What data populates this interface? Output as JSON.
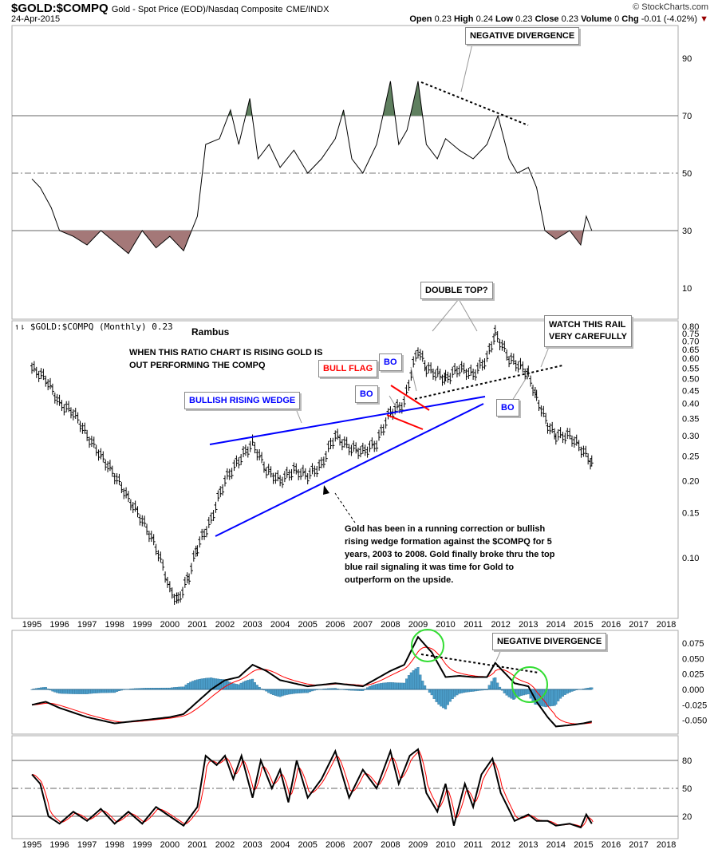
{
  "header": {
    "symbol": "$GOLD:$COMPQ",
    "description": "Gold - Spot Price (EOD)/Nasdaq Composite",
    "exchange": "CME/INDX",
    "date": "24-Apr-2015",
    "copyright": "© StockCharts.com",
    "open_label": "Open",
    "open": "0.23",
    "high_label": "High",
    "high": "0.24",
    "low_label": "Low",
    "low": "0.23",
    "close_label": "Close",
    "close": "0.23",
    "volume_label": "Volume",
    "volume": "0",
    "chg_label": "Chg",
    "chg": "-0.01 (-4.02%)"
  },
  "colors": {
    "price": "#000000",
    "wedge": "#0000ff",
    "flag": "#ff0000",
    "signal": "#ff0000",
    "histogram": "#4a9cc8",
    "circle": "#33dd33",
    "overbought_fill": "#5f7f5f",
    "oversold_fill": "#a47878"
  },
  "annotations": {
    "neg_div_top": "NEGATIVE DIVERGENCE",
    "double_top": "DOUBLE TOP?",
    "watch_rail_1": "WATCH THIS RAIL",
    "watch_rail_2": "VERY CAREFULLY",
    "legend": "$GOLD:$COMPQ (Monthly) 0.23",
    "author": "Rambus",
    "ratio_note_1": "WHEN THIS RATIO CHART IS RISING GOLD IS",
    "ratio_note_2": "OUT PERFORMING THE COMPQ",
    "bull_flag": "BULL FLAG",
    "bo": "BO",
    "wedge": "BULLISH RISING WEDGE",
    "gold_note": [
      "Gold has been in a running correction or bullish",
      "rising wedge formation against the $COMPQ for 5",
      "years, 2003 to 2008.  Gold finally broke thru the top",
      "blue rail signaling it was time for Gold to",
      "outperform on the upside."
    ],
    "neg_div_macd": "NEGATIVE DIVERGENCE"
  },
  "chart_data": [
    {
      "type": "line",
      "panel": "top-indicator",
      "yticks": [
        10,
        30,
        50,
        70,
        90
      ],
      "ylim": [
        0,
        105
      ],
      "points": [
        [
          1995,
          48
        ],
        [
          1995.3,
          45
        ],
        [
          1995.7,
          38
        ],
        [
          1996,
          30
        ],
        [
          1996.5,
          28
        ],
        [
          1997,
          25
        ],
        [
          1997.5,
          30
        ],
        [
          1998,
          26
        ],
        [
          1998.5,
          22
        ],
        [
          1999,
          30
        ],
        [
          1999.5,
          24
        ],
        [
          2000,
          28
        ],
        [
          2000.5,
          23
        ],
        [
          2001,
          35
        ],
        [
          2001.3,
          60
        ],
        [
          2001.8,
          62
        ],
        [
          2002.2,
          72
        ],
        [
          2002.5,
          60
        ],
        [
          2002.9,
          76
        ],
        [
          2003.2,
          55
        ],
        [
          2003.6,
          60
        ],
        [
          2004,
          52
        ],
        [
          2004.5,
          58
        ],
        [
          2005,
          50
        ],
        [
          2005.5,
          55
        ],
        [
          2006,
          62
        ],
        [
          2006.3,
          72
        ],
        [
          2006.6,
          55
        ],
        [
          2007,
          50
        ],
        [
          2007.5,
          60
        ],
        [
          2008,
          82
        ],
        [
          2008.3,
          60
        ],
        [
          2008.6,
          65
        ],
        [
          2009,
          82
        ],
        [
          2009.3,
          60
        ],
        [
          2009.7,
          55
        ],
        [
          2010,
          62
        ],
        [
          2010.5,
          58
        ],
        [
          2011,
          55
        ],
        [
          2011.5,
          60
        ],
        [
          2011.9,
          70
        ],
        [
          2012.3,
          55
        ],
        [
          2012.6,
          50
        ],
        [
          2013,
          52
        ],
        [
          2013.3,
          45
        ],
        [
          2013.6,
          30
        ],
        [
          2014,
          27
        ],
        [
          2014.5,
          30
        ],
        [
          2014.9,
          25
        ],
        [
          2015.1,
          35
        ],
        [
          2015.3,
          30
        ]
      ]
    },
    {
      "type": "ohlc",
      "panel": "price",
      "scale": "log",
      "yticks": [
        0.1,
        0.15,
        0.2,
        0.25,
        0.3,
        0.35,
        0.4,
        0.45,
        0.5,
        0.55,
        0.6,
        0.65,
        0.7,
        0.75,
        0.8
      ],
      "points": [
        [
          1995,
          0.55
        ],
        [
          1995.5,
          0.5
        ],
        [
          1996,
          0.4
        ],
        [
          1996.5,
          0.37
        ],
        [
          1997,
          0.3
        ],
        [
          1997.5,
          0.25
        ],
        [
          1998,
          0.21
        ],
        [
          1998.5,
          0.17
        ],
        [
          1999,
          0.14
        ],
        [
          1999.5,
          0.11
        ],
        [
          2000,
          0.075
        ],
        [
          2000.3,
          0.068
        ],
        [
          2000.7,
          0.085
        ],
        [
          2001,
          0.11
        ],
        [
          2001.5,
          0.14
        ],
        [
          2002,
          0.2
        ],
        [
          2002.5,
          0.24
        ],
        [
          2003,
          0.28
        ],
        [
          2003.5,
          0.22
        ],
        [
          2004,
          0.2
        ],
        [
          2004.5,
          0.22
        ],
        [
          2005,
          0.21
        ],
        [
          2005.5,
          0.23
        ],
        [
          2006,
          0.3
        ],
        [
          2006.5,
          0.27
        ],
        [
          2007,
          0.26
        ],
        [
          2007.5,
          0.28
        ],
        [
          2008,
          0.37
        ],
        [
          2008.5,
          0.4
        ],
        [
          2009,
          0.65
        ],
        [
          2009.3,
          0.55
        ],
        [
          2010,
          0.5
        ],
        [
          2010.5,
          0.55
        ],
        [
          2011,
          0.52
        ],
        [
          2011.5,
          0.6
        ],
        [
          2011.8,
          0.75
        ],
        [
          2012.3,
          0.6
        ],
        [
          2012.8,
          0.55
        ],
        [
          2013,
          0.52
        ],
        [
          2013.3,
          0.42
        ],
        [
          2013.7,
          0.33
        ],
        [
          2014,
          0.3
        ],
        [
          2014.5,
          0.3
        ],
        [
          2015,
          0.26
        ],
        [
          2015.3,
          0.235
        ]
      ]
    },
    {
      "type": "macd",
      "panel": "macd",
      "yticks": [
        -0.05,
        -0.025,
        0,
        0.025,
        0.05,
        0.075
      ],
      "macd": [
        [
          1995,
          -0.025
        ],
        [
          1995.5,
          -0.02
        ],
        [
          1996,
          -0.03
        ],
        [
          1997,
          -0.045
        ],
        [
          1998,
          -0.055
        ],
        [
          1999,
          -0.05
        ],
        [
          2000,
          -0.045
        ],
        [
          2000.5,
          -0.04
        ],
        [
          2001,
          -0.02
        ],
        [
          2001.5,
          0.0
        ],
        [
          2002,
          0.015
        ],
        [
          2002.5,
          0.02
        ],
        [
          2003,
          0.04
        ],
        [
          2003.5,
          0.03
        ],
        [
          2004,
          0.015
        ],
        [
          2005,
          0.005
        ],
        [
          2006,
          0.01
        ],
        [
          2007,
          0.005
        ],
        [
          2008,
          0.03
        ],
        [
          2008.5,
          0.04
        ],
        [
          2009,
          0.085
        ],
        [
          2009.5,
          0.06
        ],
        [
          2010,
          0.02
        ],
        [
          2010.5,
          0.022
        ],
        [
          2011,
          0.02
        ],
        [
          2011.5,
          0.02
        ],
        [
          2011.8,
          0.043
        ],
        [
          2012.5,
          0.01
        ],
        [
          2013,
          0.005
        ],
        [
          2013.3,
          -0.02
        ],
        [
          2013.7,
          -0.045
        ],
        [
          2014,
          -0.06
        ],
        [
          2014.5,
          -0.058
        ],
        [
          2015,
          -0.055
        ],
        [
          2015.3,
          -0.052
        ]
      ]
    },
    {
      "type": "line",
      "panel": "rsi",
      "yticks": [
        20,
        50,
        80
      ],
      "points": [
        [
          1995,
          65
        ],
        [
          1995.3,
          55
        ],
        [
          1995.6,
          20
        ],
        [
          1996,
          12
        ],
        [
          1996.5,
          25
        ],
        [
          1997,
          15
        ],
        [
          1997.5,
          28
        ],
        [
          1998,
          12
        ],
        [
          1998.5,
          25
        ],
        [
          1999,
          12
        ],
        [
          1999.5,
          30
        ],
        [
          2000,
          20
        ],
        [
          2000.5,
          10
        ],
        [
          2001,
          30
        ],
        [
          2001.3,
          85
        ],
        [
          2001.7,
          75
        ],
        [
          2002,
          85
        ],
        [
          2002.3,
          60
        ],
        [
          2002.6,
          85
        ],
        [
          2003,
          40
        ],
        [
          2003.3,
          80
        ],
        [
          2003.7,
          50
        ],
        [
          2004,
          70
        ],
        [
          2004.3,
          35
        ],
        [
          2004.6,
          80
        ],
        [
          2005,
          40
        ],
        [
          2005.5,
          60
        ],
        [
          2006,
          90
        ],
        [
          2006.5,
          40
        ],
        [
          2007,
          70
        ],
        [
          2007.5,
          50
        ],
        [
          2008,
          90
        ],
        [
          2008.3,
          55
        ],
        [
          2008.7,
          85
        ],
        [
          2009,
          92
        ],
        [
          2009.3,
          45
        ],
        [
          2009.7,
          25
        ],
        [
          2010,
          55
        ],
        [
          2010.3,
          10
        ],
        [
          2010.7,
          55
        ],
        [
          2011,
          30
        ],
        [
          2011.3,
          65
        ],
        [
          2011.7,
          82
        ],
        [
          2012,
          45
        ],
        [
          2012.5,
          15
        ],
        [
          2013,
          22
        ],
        [
          2013.3,
          15
        ],
        [
          2013.7,
          15
        ],
        [
          2014,
          10
        ],
        [
          2014.5,
          12
        ],
        [
          2014.9,
          8
        ],
        [
          2015.1,
          22
        ],
        [
          2015.3,
          12
        ]
      ]
    },
    {
      "type": "axis",
      "years": [
        "1995",
        "1996",
        "1997",
        "1998",
        "1999",
        "2000",
        "2001",
        "2002",
        "2003",
        "2004",
        "2005",
        "2006",
        "2007",
        "2008",
        "2009",
        "2010",
        "2011",
        "2012",
        "2013",
        "2014",
        "2015",
        "2016",
        "2017",
        "2018"
      ]
    }
  ]
}
